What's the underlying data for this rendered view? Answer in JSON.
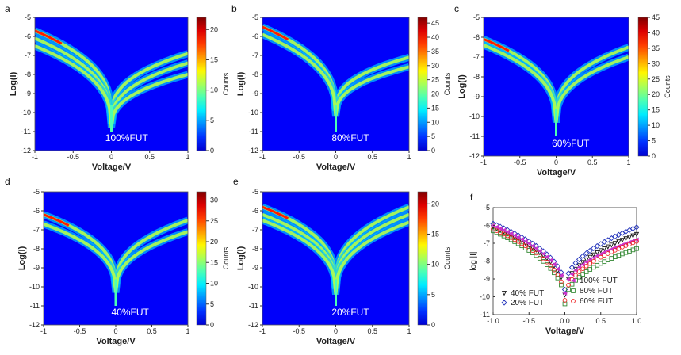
{
  "figure": {
    "panels": [
      {
        "letter": "a",
        "annotation": "100%FUT",
        "cbar_max": 22,
        "cbar_ticks": [
          0,
          5,
          10,
          15,
          20
        ]
      },
      {
        "letter": "b",
        "annotation": "80%FUT",
        "cbar_max": 47,
        "cbar_ticks": [
          0,
          5,
          10,
          15,
          20,
          25,
          30,
          35,
          40,
          45
        ]
      },
      {
        "letter": "c",
        "annotation": "60%FUT",
        "cbar_max": 45,
        "cbar_ticks": [
          0,
          5,
          10,
          15,
          20,
          25,
          30,
          35,
          40,
          45
        ]
      },
      {
        "letter": "d",
        "annotation": "40%FUT",
        "cbar_max": 32,
        "cbar_ticks": [
          0,
          5,
          10,
          15,
          20,
          25,
          30
        ]
      },
      {
        "letter": "e",
        "annotation": "20%FUT",
        "cbar_max": 22,
        "cbar_ticks": [
          0,
          5,
          10,
          15,
          20
        ]
      },
      {
        "letter": "f"
      }
    ],
    "heatmap_xlabel": "Voltage/V",
    "heatmap_ylabel": "Log(I)",
    "cbar_label": "Counts",
    "heatmap_xticks": [
      "-1",
      "-0.5",
      "0",
      "0.5",
      "1"
    ],
    "heatmap_yticks": [
      "-5",
      "-6",
      "-7",
      "-8",
      "-9",
      "-10",
      "-11",
      "-12"
    ],
    "line_xticks": [
      "-1.0",
      "-0.5",
      "0.0",
      "0.5",
      "1.0"
    ],
    "line_yticks": [
      "-5",
      "-6",
      "-7",
      "-8",
      "-9",
      "-10",
      "-11"
    ]
  },
  "chart_data": [
    {
      "type": "heatmap",
      "panel": "a",
      "xlabel": "Voltage/V",
      "ylabel": "Log(I)",
      "xlim": [
        -1,
        1
      ],
      "ylim": [
        -12,
        -5
      ],
      "colorbar": {
        "label": "Counts",
        "range": [
          0,
          22
        ]
      },
      "annotation": "100%FUT",
      "branches": [
        {
          "left_end": -5.7,
          "right_end": -6.9,
          "min": -10.2
        },
        {
          "left_end": -6.1,
          "right_end": -7.4,
          "min": -10.6
        },
        {
          "left_end": -6.5,
          "right_end": -8.0,
          "min": -10.8
        }
      ]
    },
    {
      "type": "heatmap",
      "panel": "b",
      "xlabel": "Voltage/V",
      "ylabel": "Log(I)",
      "xlim": [
        -1,
        1
      ],
      "ylim": [
        -12,
        -5
      ],
      "colorbar": {
        "label": "Counts",
        "range": [
          0,
          47
        ]
      },
      "annotation": "80%FUT",
      "branches": [
        {
          "left_end": -5.5,
          "right_end": -7.1,
          "min": -9.9
        },
        {
          "left_end": -5.9,
          "right_end": -7.6,
          "min": -10.2
        }
      ]
    },
    {
      "type": "heatmap",
      "panel": "c",
      "xlabel": "Voltage/V",
      "ylabel": "Log(I)",
      "xlim": [
        -1,
        1
      ],
      "ylim": [
        -12,
        -5
      ],
      "colorbar": {
        "label": "Counts",
        "range": [
          0,
          45
        ]
      },
      "annotation": "60%FUT",
      "branches": [
        {
          "left_end": -6.1,
          "right_end": -6.5,
          "min": -10.0
        },
        {
          "left_end": -6.4,
          "right_end": -7.0,
          "min": -10.3
        }
      ]
    },
    {
      "type": "heatmap",
      "panel": "d",
      "xlabel": "Voltage/V",
      "ylabel": "Log(I)",
      "xlim": [
        -1,
        1
      ],
      "ylim": [
        -12,
        -5
      ],
      "colorbar": {
        "label": "Counts",
        "range": [
          0,
          32
        ]
      },
      "annotation": "40%FUT",
      "branches": [
        {
          "left_end": -6.2,
          "right_end": -6.5,
          "min": -10.0
        },
        {
          "left_end": -6.7,
          "right_end": -7.1,
          "min": -10.3
        }
      ]
    },
    {
      "type": "heatmap",
      "panel": "e",
      "xlabel": "Voltage/V",
      "ylabel": "Log(I)",
      "xlim": [
        -1,
        1
      ],
      "ylim": [
        -12,
        -5
      ],
      "colorbar": {
        "label": "Counts",
        "range": [
          0,
          22
        ]
      },
      "annotation": "20%FUT",
      "branches": [
        {
          "left_end": -5.8,
          "right_end": -5.8,
          "min": -9.8
        },
        {
          "left_end": -6.2,
          "right_end": -6.2,
          "min": -10.1
        },
        {
          "left_end": -6.5,
          "right_end": -6.6,
          "min": -10.4
        }
      ]
    },
    {
      "type": "scatter",
      "panel": "f",
      "xlabel": "Voltage/V",
      "ylabel": "log |I|",
      "xlim": [
        -1,
        1
      ],
      "ylim": [
        -11,
        -5
      ],
      "series": [
        {
          "name": "40% FUT",
          "marker": "triangle-down",
          "color": "#111111",
          "left_end": -6.1,
          "right_end": -6.5,
          "min": -9.9
        },
        {
          "name": "20% FUT",
          "marker": "diamond",
          "color": "#2233bb",
          "left_end": -5.9,
          "right_end": -6.1,
          "min": -9.6
        },
        {
          "name": "100% FUT",
          "marker": "triangle-left",
          "color": "#cc33cc",
          "left_end": -6.0,
          "right_end": -6.8,
          "min": -9.8
        },
        {
          "name": "80% FUT",
          "marker": "square",
          "color": "#338833",
          "left_end": -6.3,
          "right_end": -7.3,
          "min": -10.4
        },
        {
          "name": "60% FUT",
          "marker": "circle",
          "color": "#ee2222",
          "left_end": -6.2,
          "right_end": -6.9,
          "min": -10.2
        }
      ],
      "legend": "bottom"
    }
  ]
}
